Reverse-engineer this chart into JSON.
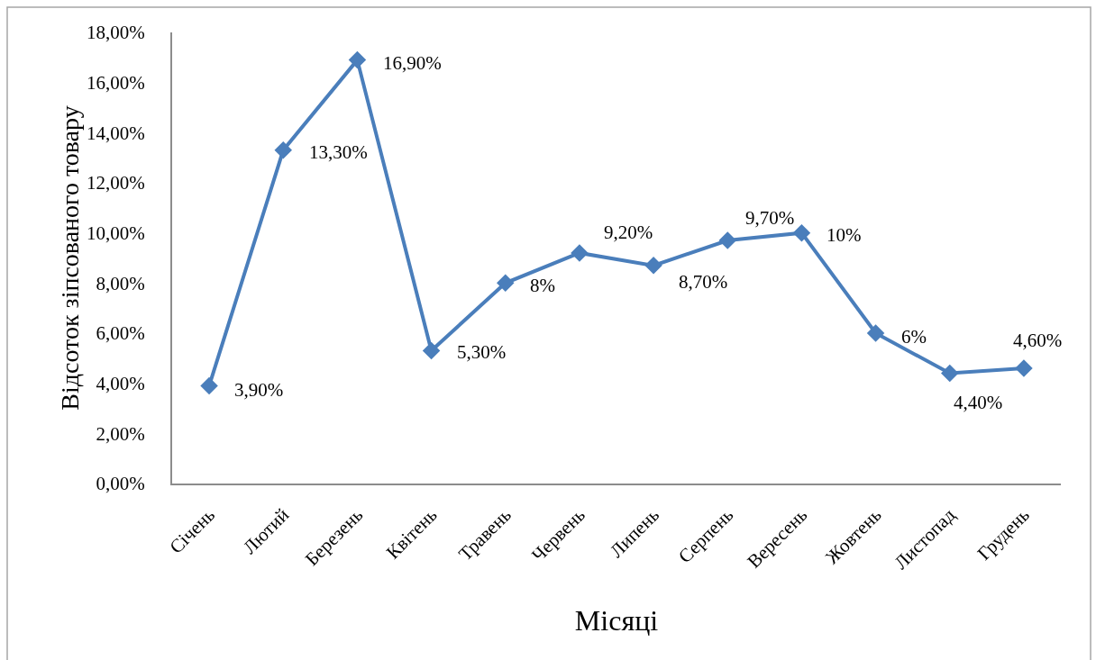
{
  "chart_data": {
    "type": "line",
    "xlabel": "Місяці",
    "ylabel": "Відсоток зіпсованого товару",
    "categories": [
      "Січень",
      "Лютий",
      "Березень",
      "Квітень",
      "Травень",
      "Червень",
      "Липень",
      "Серпень",
      "Вересень",
      "Жовтень",
      "Листопад",
      "Грудень"
    ],
    "series": [
      {
        "color": "#4a7ebb",
        "values": [
          3.9,
          13.3,
          16.9,
          5.3,
          8,
          9.2,
          8.7,
          9.7,
          10,
          6,
          4.4,
          4.6
        ],
        "value_labels": [
          "3,90%",
          "13,30%",
          "16,90%",
          "5,30%",
          "8%",
          "9,20%",
          "8,70%",
          "9,70%",
          "10%",
          "6%",
          "4,40%",
          "4,60%"
        ]
      }
    ],
    "ylim": [
      0,
      18
    ],
    "yticks": [
      {
        "value": 0,
        "label": "0,00%"
      },
      {
        "value": 2,
        "label": "2,00%"
      },
      {
        "value": 4,
        "label": "4,00%"
      },
      {
        "value": 6,
        "label": "6,00%"
      },
      {
        "value": 8,
        "label": "8,00%"
      },
      {
        "value": 10,
        "label": "10,00%"
      },
      {
        "value": 12,
        "label": "12,00%"
      },
      {
        "value": 14,
        "label": "14,00%"
      },
      {
        "value": 16,
        "label": "16,00%"
      },
      {
        "value": 18,
        "label": "18,00%"
      }
    ],
    "grid": false,
    "marker": "diamond",
    "line_style": "solid"
  }
}
